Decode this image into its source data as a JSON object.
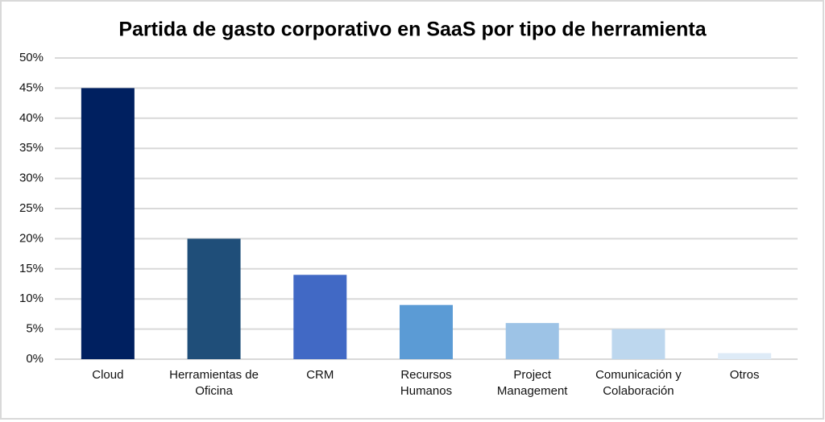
{
  "chart_data": {
    "type": "bar",
    "title": "Partida de gasto corporativo en SaaS por tipo de herramienta",
    "categories": [
      "Cloud",
      "Herramientas de\nOficina",
      "CRM",
      "Recursos\nHumanos",
      "Project\nManagement",
      "Comunicación y\nColaboración",
      "Otros"
    ],
    "values": [
      45,
      20,
      14,
      9,
      6,
      5,
      1
    ],
    "colors": [
      "#002060",
      "#1f4e79",
      "#4169c5",
      "#5b9bd5",
      "#9dc3e6",
      "#bdd7ee",
      "#deebf7"
    ],
    "ylim": [
      0,
      50
    ],
    "yticks": [
      {
        "value": 0,
        "label": "0%"
      },
      {
        "value": 5,
        "label": "5%"
      },
      {
        "value": 10,
        "label": "10%"
      },
      {
        "value": 15,
        "label": "15%"
      },
      {
        "value": 20,
        "label": "20%"
      },
      {
        "value": 25,
        "label": "25%"
      },
      {
        "value": 30,
        "label": "30%"
      },
      {
        "value": 35,
        "label": "35%"
      },
      {
        "value": 40,
        "label": "40%"
      },
      {
        "value": 45,
        "label": "45%"
      },
      {
        "value": 50,
        "label": "50%"
      }
    ],
    "grid": true
  }
}
